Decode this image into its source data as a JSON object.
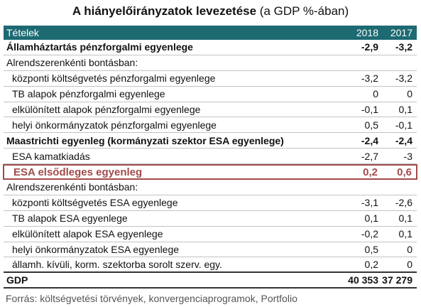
{
  "title": {
    "bold": "A hiányelőirányzatok levezetése",
    "rest": " (a GDP %-ában)"
  },
  "header": {
    "label": "Tételek",
    "col1": "2018",
    "col2": "2017"
  },
  "rows": [
    {
      "label": "Államháztartás pénzforgalmi egyenlege",
      "v2018": "-2,9",
      "v2017": "-3,2"
    },
    {
      "label": "Alrendszerenkénti bontásban:",
      "v2018": "",
      "v2017": ""
    },
    {
      "label": "központi költségvetés pénzforgalmi egyenlege",
      "v2018": "-3,2",
      "v2017": "-3,2"
    },
    {
      "label": "TB alapok pénzforgalmi egyenlege",
      "v2018": "0",
      "v2017": "0"
    },
    {
      "label": "elkülönített alapok pénzforgalmi egyenlege",
      "v2018": "-0,1",
      "v2017": "0,1"
    },
    {
      "label": "helyi önkormányzatok pénzforgalmi egyenlege",
      "v2018": "0,5",
      "v2017": "-0,1"
    },
    {
      "label": "Maastrichti egyenleg (kormányzati szektor ESA egyenlege)",
      "v2018": "-2,4",
      "v2017": "-2,4"
    },
    {
      "label": "ESA kamatkiadás",
      "v2018": "-2,7",
      "v2017": "-3"
    },
    {
      "label": "ESA elsődleges egyenleg",
      "v2018": "0,2",
      "v2017": "0,6"
    },
    {
      "label": "Alrendszerenkénti bontásban:",
      "v2018": "",
      "v2017": ""
    },
    {
      "label": "központi költségvetés ESA egyenlege",
      "v2018": "-3,1",
      "v2017": "-2,6"
    },
    {
      "label": "TB alapok ESA egyenlege",
      "v2018": "0,1",
      "v2017": "0,1"
    },
    {
      "label": "elkülönített alapok ESA egyenlege",
      "v2018": "-0,2",
      "v2017": "0,1"
    },
    {
      "label": "helyi önkormányzatok ESA egyenlege",
      "v2018": "0,5",
      "v2017": "0"
    },
    {
      "label": "államh. kívüli, korm. szektorba sorolt szerv. egy.",
      "v2018": "0,2",
      "v2017": "0"
    },
    {
      "label": "GDP",
      "v2018": "40 353",
      "v2017": "37 279"
    }
  ],
  "source": "Forrás: költségvetési törvények, konvergenciaprogramok, Portfolio",
  "colors": {
    "header_bg": "#1d6a73",
    "highlight": "#a34a4a"
  }
}
